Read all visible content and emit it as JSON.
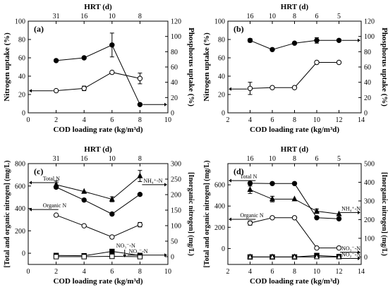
{
  "colors": {
    "ink": "#000000",
    "filled_marker": "#000000",
    "open_marker": "#ffffff",
    "background": "#ffffff"
  },
  "chart_data": [
    {
      "id": "a",
      "type": "line",
      "panel_label": "(a)",
      "top_axis": {
        "label": "HRT (d)",
        "ticks": [
          {
            "x": 2,
            "label": "31"
          },
          {
            "x": 4,
            "label": "16"
          },
          {
            "x": 6,
            "label": "10"
          },
          {
            "x": 8,
            "label": "8"
          }
        ]
      },
      "xlabel": "COD loading rate (kg/m³d)",
      "xlim": [
        0,
        10
      ],
      "xticks": [
        0,
        2,
        4,
        6,
        8,
        10
      ],
      "ylabel": "Nitrogen uptake (%)",
      "ylim": [
        0,
        100
      ],
      "yticks": [
        0,
        20,
        40,
        60,
        80,
        100
      ],
      "y2label": "Phosphorus uptake (%)",
      "y2lim": [
        0,
        120
      ],
      "y2ticks": [
        0,
        20,
        40,
        60,
        80,
        100,
        120
      ],
      "series": [
        {
          "marker": "filled-circle",
          "axis": "left",
          "x": [
            2,
            4,
            6,
            8
          ],
          "y": [
            57,
            60,
            74,
            9
          ],
          "err": [
            0,
            0,
            13,
            0
          ]
        },
        {
          "marker": "open-circle",
          "axis": "right",
          "x": [
            2,
            4,
            6,
            8
          ],
          "y": [
            29,
            32,
            53,
            45
          ],
          "err": [
            0,
            3,
            0,
            7
          ]
        }
      ],
      "arrows": [
        {
          "from_x": 2,
          "to_x": 0,
          "y": 24,
          "axis": "left"
        },
        {
          "from_x": 8,
          "to_x": 10,
          "y": 9,
          "axis": "left"
        }
      ]
    },
    {
      "id": "b",
      "type": "line",
      "panel_label": "(b)",
      "top_axis": {
        "label": "HRT (d)",
        "ticks": [
          {
            "x": 4,
            "label": "16"
          },
          {
            "x": 6,
            "label": "10"
          },
          {
            "x": 8,
            "label": "8"
          },
          {
            "x": 10,
            "label": "6"
          },
          {
            "x": 12,
            "label": "5"
          }
        ]
      },
      "xlabel": "COD loading rate (kg/m³d)",
      "xlim": [
        2,
        14
      ],
      "xticks": [
        2,
        4,
        6,
        8,
        10,
        12,
        14
      ],
      "ylabel": "Nitrogen uptake (%)",
      "ylim": [
        0,
        100
      ],
      "yticks": [
        0,
        20,
        40,
        60,
        80,
        100
      ],
      "y2label": "Phosphorus uptake (%)",
      "y2lim": [
        0,
        120
      ],
      "y2ticks": [
        0,
        20,
        40,
        60,
        80,
        100,
        120
      ],
      "series": [
        {
          "marker": "filled-circle",
          "axis": "left",
          "x": [
            4,
            6,
            8,
            10,
            12
          ],
          "y": [
            79,
            69,
            76,
            79,
            79
          ],
          "err": [
            2,
            0,
            0,
            3,
            0
          ]
        },
        {
          "marker": "open-circle",
          "axis": "right",
          "x": [
            4,
            6,
            8,
            10,
            12
          ],
          "y": [
            32,
            33,
            33,
            66,
            66
          ],
          "err": [
            8,
            0,
            0,
            0,
            0
          ]
        }
      ],
      "arrows": [
        {
          "from_x": 4,
          "to_x": 2,
          "y": 26,
          "axis": "left"
        },
        {
          "from_x": 12,
          "to_x": 14,
          "y": 79,
          "axis": "left"
        }
      ]
    },
    {
      "id": "c",
      "type": "line",
      "panel_label": "(c)",
      "top_axis": {
        "label": "HRT (d)",
        "ticks": [
          {
            "x": 2,
            "label": "31"
          },
          {
            "x": 4,
            "label": "16"
          },
          {
            "x": 6,
            "label": "10"
          },
          {
            "x": 8,
            "label": "8"
          }
        ]
      },
      "xlabel": "COD loading rate (kg/m³d)",
      "xlim": [
        0,
        10
      ],
      "xticks": [
        0,
        2,
        4,
        6,
        8,
        10
      ],
      "ylabel": "[Total and organic nitrogen] (mg/L)",
      "ylim": [
        -100,
        800
      ],
      "yticks": [
        0,
        200,
        400,
        600,
        800
      ],
      "y2label": "[Inorganic nitrogen] (mg/L)",
      "y2lim": [
        -25,
        300
      ],
      "y2ticks": [
        0,
        50,
        100,
        150,
        200,
        250,
        300
      ],
      "series": [
        {
          "marker": "filled-triangle",
          "axis": "right",
          "x": [
            2,
            4,
            6,
            8
          ],
          "y": [
            232,
            210,
            185,
            260
          ],
          "err": [
            12,
            0,
            8,
            18
          ]
        },
        {
          "marker": "filled-circle",
          "axis": "left",
          "x": [
            2,
            4,
            6,
            8
          ],
          "y": [
            590,
            475,
            350,
            525
          ],
          "err": [
            0,
            0,
            0,
            0
          ]
        },
        {
          "marker": "open-circle",
          "axis": "left",
          "x": [
            2,
            4,
            6,
            8
          ],
          "y": [
            340,
            245,
            145,
            255
          ],
          "err": [
            0,
            0,
            0,
            20
          ]
        },
        {
          "marker": "filled-square",
          "axis": "right",
          "x": [
            2,
            4,
            6,
            8
          ],
          "y": [
            4,
            3,
            17,
            4
          ],
          "err": [
            0,
            0,
            0,
            0
          ]
        },
        {
          "marker": "open-square",
          "axis": "right",
          "x": [
            2,
            4,
            6,
            8
          ],
          "y": [
            0,
            0,
            1,
            0
          ],
          "err": [
            0,
            0,
            0,
            0
          ]
        }
      ],
      "annotations": [
        {
          "text": "Total N",
          "x": 1.05,
          "y": 630,
          "arrow": "left"
        },
        {
          "text": "Organic N",
          "x": 1.05,
          "y": 390,
          "arrow": "left"
        },
        {
          "text": "NH₄⁺-N",
          "x": 8.15,
          "y": 232,
          "arrow": "right",
          "axis": "right"
        },
        {
          "text": "NO₃⁻-N",
          "x": 6.3,
          "y": 25,
          "arrow": "down-left",
          "axis": "right"
        },
        {
          "text": "NO₂⁻-N",
          "x": 7.1,
          "y": 5,
          "arrow": "right",
          "axis": "right"
        }
      ]
    },
    {
      "id": "d",
      "type": "line",
      "panel_label": "(d)",
      "top_axis": {
        "label": "HRT (d)",
        "ticks": [
          {
            "x": 4,
            "label": "16"
          },
          {
            "x": 6,
            "label": "10"
          },
          {
            "x": 8,
            "label": "8"
          },
          {
            "x": 10,
            "label": "6"
          },
          {
            "x": 12,
            "label": "5"
          }
        ]
      },
      "xlabel": "COD loading rate (kg/m³d)",
      "xlim": [
        2,
        14
      ],
      "xticks": [
        2,
        4,
        6,
        8,
        10,
        12,
        14
      ],
      "ylabel": "[Total and organic nitrogen] (mg/L)",
      "ylim": [
        -150,
        800
      ],
      "yticks": [
        0,
        200,
        400,
        600
      ],
      "y2label": "[Inorganic nitrogen] (mg/L)",
      "y2lim": [
        -40,
        500
      ],
      "y2ticks": [
        0,
        100,
        200,
        300,
        400,
        500
      ],
      "series": [
        {
          "marker": "filled-circle",
          "axis": "left",
          "x": [
            4,
            6,
            8,
            10,
            12
          ],
          "y": [
            615,
            612,
            612,
            290,
            280
          ],
          "err": [
            0,
            0,
            0,
            0,
            0
          ]
        },
        {
          "marker": "filled-triangle",
          "axis": "right",
          "x": [
            4,
            6,
            8,
            10,
            12
          ],
          "y": [
            360,
            310,
            310,
            245,
            230
          ],
          "err": [
            20,
            15,
            0,
            12,
            0
          ]
        },
        {
          "marker": "open-circle",
          "axis": "left",
          "x": [
            4,
            6,
            8,
            10,
            12
          ],
          "y": [
            240,
            290,
            290,
            5,
            5
          ],
          "err": [
            20,
            0,
            0,
            0,
            0
          ]
        },
        {
          "marker": "filled-square",
          "axis": "right",
          "x": [
            4,
            6,
            8,
            10,
            12
          ],
          "y": [
            0,
            0,
            0,
            8,
            2
          ],
          "err": [
            0,
            0,
            0,
            0,
            0
          ]
        },
        {
          "marker": "open-triangle",
          "axis": "right",
          "x": [
            4,
            6,
            8,
            10,
            12
          ],
          "y": [
            0,
            0,
            0,
            0,
            0
          ],
          "err": [
            0,
            0,
            0,
            0,
            0
          ]
        }
      ],
      "annotations": [
        {
          "text": "Total N",
          "x": 3.1,
          "y": 640,
          "arrow": "left"
        },
        {
          "text": "Organic N",
          "x": 3.1,
          "y": 275,
          "arrow": "left"
        },
        {
          "text": "NH₄⁺-N",
          "x": 12.1,
          "y": 238,
          "arrow": "right",
          "axis": "right"
        },
        {
          "text": "NO₃⁻-N",
          "x": 12.1,
          "y": 25,
          "arrow": "right",
          "axis": "right"
        },
        {
          "text": "NO₂⁻-N",
          "x": 12.1,
          "y": -8,
          "arrow": "right",
          "axis": "right"
        }
      ]
    }
  ]
}
